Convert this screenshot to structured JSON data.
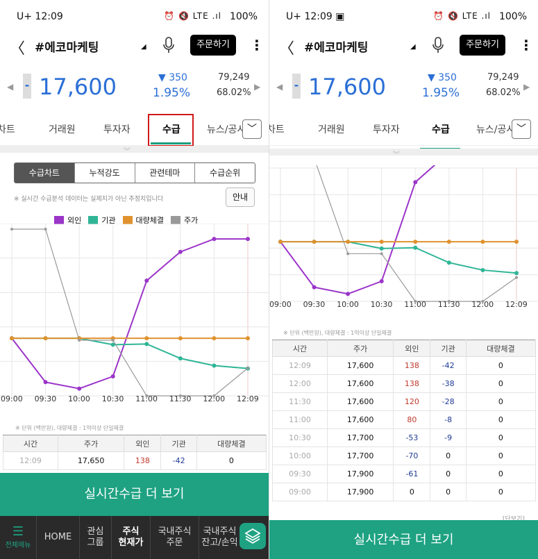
{
  "status_left": {
    "time": "12:09",
    "carrier": "U+",
    "icons": "⏰ 🔇 LTE .ıl",
    "battery": "100%"
  },
  "status_right": {
    "time": "12:09",
    "carrier": "U+",
    "icons": "⏰ 🔇 LTE .ıl",
    "battery": "100%"
  },
  "header": {
    "back": "〈",
    "name": "#에코마케팅",
    "order_label": "주문하기",
    "more": "⋮"
  },
  "quote": {
    "price": "17,600",
    "sign": "-",
    "change": "▼ 350",
    "change_pct": "1.95%",
    "volume": "79,249",
    "ratio": "68.02%",
    "prev_arrow": "◀",
    "next_arrow": "▶"
  },
  "tabs": [
    "차트",
    "거래원",
    "투자자",
    "수급",
    "뉴스/공시"
  ],
  "active_tab": "수급",
  "subtabs": [
    "수급차트",
    "누적강도",
    "관련테마",
    "수급순위"
  ],
  "notice": "※ 실시간 수급분석 데이터는 실제치가 아닌 추정치입니다",
  "guide_label": "안내",
  "legend": [
    {
      "name": "외인",
      "color": "#9b34c9"
    },
    {
      "name": "기관",
      "color": "#2fb596"
    },
    {
      "name": "대량체결",
      "color": "#e0922e"
    },
    {
      "name": "주가",
      "color": "#999999"
    }
  ],
  "chart_data": {
    "type": "line",
    "x": [
      "09:00",
      "09:30",
      "10:00",
      "10:30",
      "11:00",
      "11:30",
      "12:00",
      "12:09"
    ],
    "ylim": [
      -80,
      140
    ],
    "series": [
      {
        "name": "외인",
        "color": "#9b34c9",
        "values": [
          0,
          -61,
          -70,
          -53,
          80,
          120,
          138,
          138
        ]
      },
      {
        "name": "기관",
        "color": "#2fb596",
        "values": [
          0,
          0,
          0,
          -9,
          -8,
          -28,
          -38,
          -42
        ]
      },
      {
        "name": "대량체결",
        "color": "#e0922e",
        "values": [
          0,
          0,
          0,
          0,
          0,
          0,
          0,
          0
        ]
      },
      {
        "name": "주가",
        "color": "#999999",
        "values": [
          17900,
          17900,
          17700,
          17700,
          17600,
          17600,
          17600,
          17650
        ]
      }
    ]
  },
  "unit_note": "※ 단위 (백만원), 대량체결 : 1억이상 단일체결",
  "table_headers": [
    "시간",
    "주가",
    "외인",
    "기관",
    "대량체결"
  ],
  "table_left_rows": [
    [
      "12:09",
      "17,650",
      "138",
      "-42",
      "0"
    ]
  ],
  "table_right_rows": [
    [
      "12:09",
      "17,600",
      "138",
      "-42",
      "0"
    ],
    [
      "12:00",
      "17,600",
      "138",
      "-38",
      "0"
    ],
    [
      "11:30",
      "17,600",
      "120",
      "-28",
      "0"
    ],
    [
      "11:00",
      "17,600",
      "80",
      "-8",
      "0"
    ],
    [
      "10:30",
      "17,700",
      "-53",
      "-9",
      "0"
    ],
    [
      "10:00",
      "17,700",
      "-70",
      "0",
      "0"
    ],
    [
      "09:30",
      "17,900",
      "-61",
      "0",
      "0"
    ],
    [
      "09:00",
      "17,900",
      "0",
      "0",
      "0"
    ]
  ],
  "cta_label": "실시간수급 더 보기",
  "bottom_nav": {
    "menu": "전체메뉴",
    "items": [
      "HOME",
      "관심\n그룹",
      "주식\n현재가",
      "국내주식\n주문",
      "국내주식\n잔고/손익"
    ]
  },
  "right_caption": "[단보기]"
}
